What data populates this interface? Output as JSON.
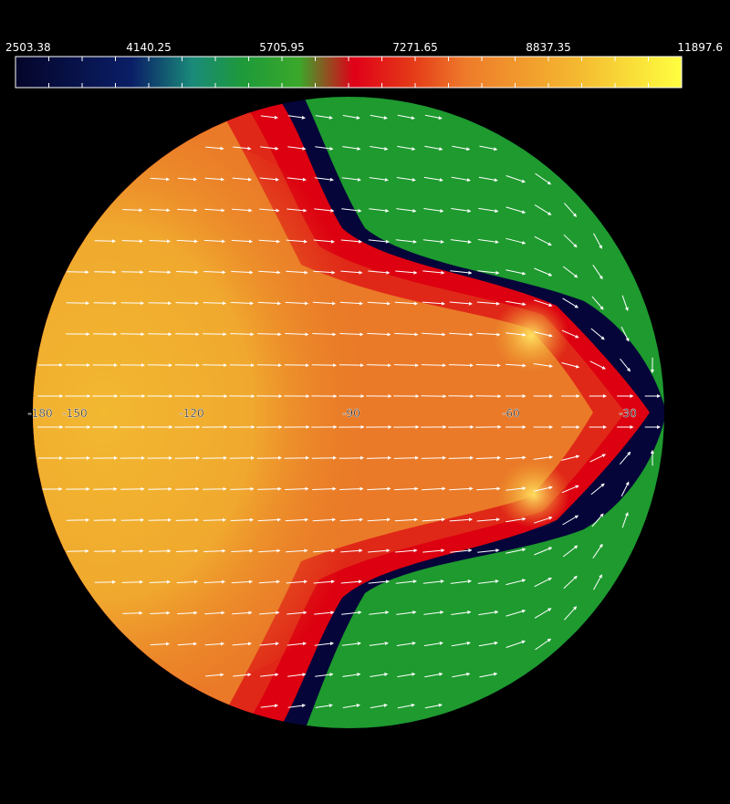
{
  "chart_data": {
    "type": "heatmap",
    "projection": "orthographic-globe",
    "background": "#000000",
    "colorbar": {
      "orientation": "horizontal",
      "placement": "top",
      "tick_labels": [
        "2503.38",
        "4140.25",
        "5705.95",
        "7271.65",
        "8837.35",
        "11897.6"
      ],
      "range": [
        2503.38,
        11897.6
      ],
      "stops": [
        {
          "value": 2503.38,
          "color": "#05052a"
        },
        {
          "value": 4140.25,
          "color": "#0a1e66"
        },
        {
          "value": 5000.0,
          "color": "#1a8a7a"
        },
        {
          "value": 5705.95,
          "color": "#1e9a3a"
        },
        {
          "value": 6500.0,
          "color": "#3aa82a"
        },
        {
          "value": 7271.65,
          "color": "#e00018"
        },
        {
          "value": 8100.0,
          "color": "#e43a18"
        },
        {
          "value": 8837.35,
          "color": "#ee7a2a"
        },
        {
          "value": 10400.0,
          "color": "#f4b830"
        },
        {
          "value": 11897.6,
          "color": "#ffff40"
        }
      ]
    },
    "field_colors": {
      "core": "#f2b830",
      "warm": "#ea7a28",
      "hot": "#e02818",
      "red": "#dc0010",
      "green": "#1e9a2e",
      "teal": "#1a8a80",
      "dark": "#0a2260",
      "night": "#05053a"
    },
    "longitude_labels": [
      "-180",
      "-150",
      "-120",
      "-90",
      "-60",
      "-30"
    ],
    "vectors": {
      "color": "#ffffff",
      "description_pattern": "eastward flow on day side, converging toward terminator"
    }
  }
}
